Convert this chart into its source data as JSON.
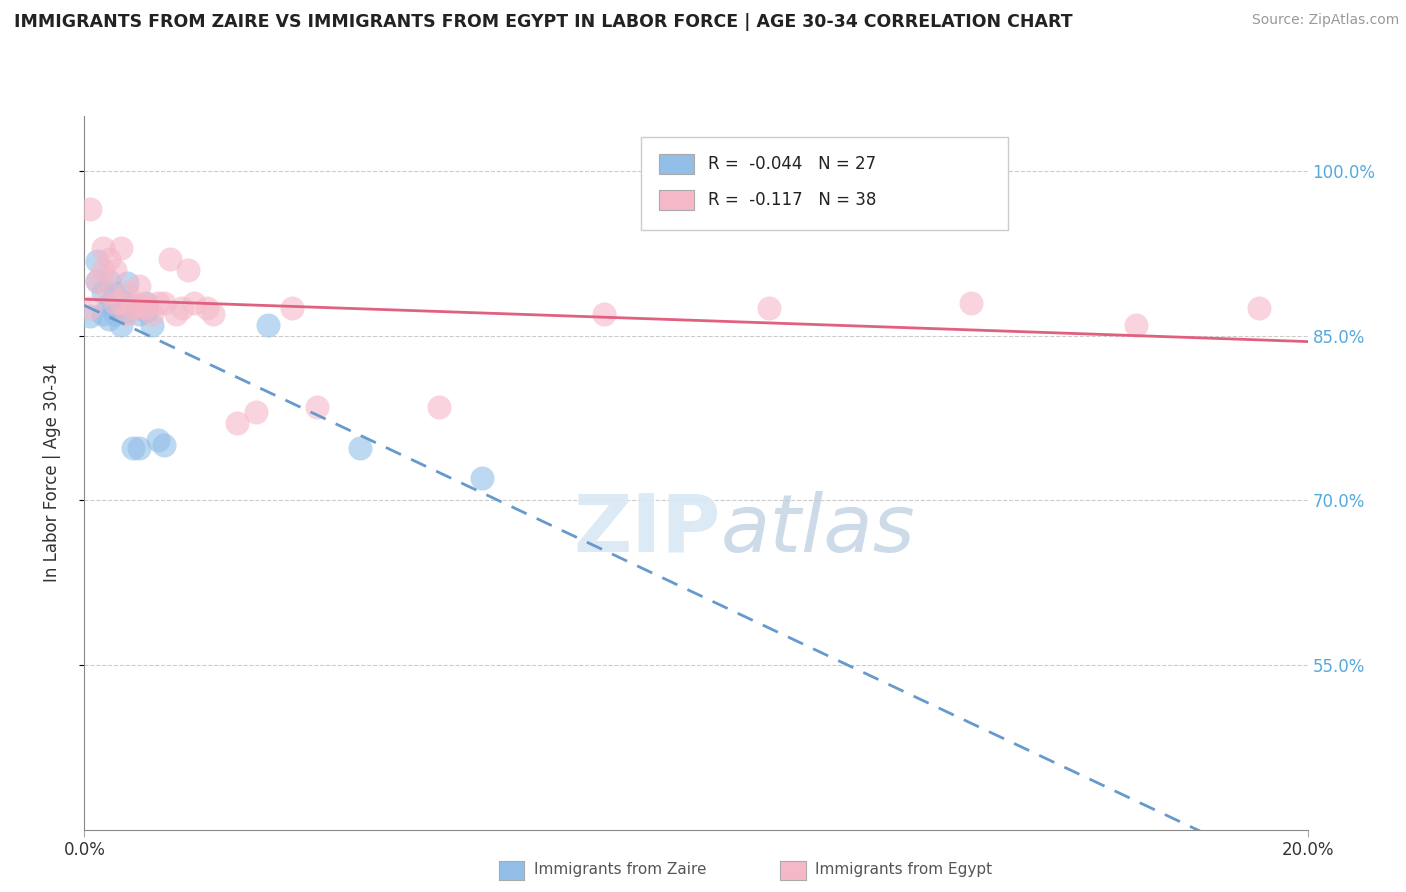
{
  "title": "IMMIGRANTS FROM ZAIRE VS IMMIGRANTS FROM EGYPT IN LABOR FORCE | AGE 30-34 CORRELATION CHART",
  "source": "Source: ZipAtlas.com",
  "ylabel": "In Labor Force | Age 30-34",
  "xlim": [
    0.0,
    0.2
  ],
  "ylim": [
    0.4,
    1.05
  ],
  "yticks": [
    0.55,
    0.7,
    0.85,
    1.0
  ],
  "ytick_labels": [
    "55.0%",
    "70.0%",
    "85.0%",
    "100.0%"
  ],
  "xticks": [
    0.0,
    0.2
  ],
  "xtick_labels": [
    "0.0%",
    "20.0%"
  ],
  "legend_r_zaire": "-0.044",
  "legend_n_zaire": "27",
  "legend_r_egypt": "-0.117",
  "legend_n_egypt": "38",
  "zaire_color": "#92bee8",
  "egypt_color": "#f5b8c8",
  "zaire_line_color": "#6699cc",
  "egypt_line_color": "#e06080",
  "background_color": "#ffffff",
  "watermark_zip": "ZIP",
  "watermark_atlas": "atlas",
  "zaire_points_x": [
    0.001,
    0.002,
    0.002,
    0.003,
    0.003,
    0.004,
    0.004,
    0.004,
    0.005,
    0.005,
    0.005,
    0.006,
    0.006,
    0.007,
    0.007,
    0.007,
    0.008,
    0.009,
    0.009,
    0.01,
    0.01,
    0.011,
    0.012,
    0.013,
    0.03,
    0.045,
    0.065
  ],
  "zaire_points_y": [
    0.868,
    0.9,
    0.918,
    0.87,
    0.89,
    0.865,
    0.878,
    0.9,
    0.87,
    0.875,
    0.888,
    0.86,
    0.88,
    0.872,
    0.88,
    0.898,
    0.748,
    0.748,
    0.87,
    0.872,
    0.88,
    0.86,
    0.755,
    0.75,
    0.86,
    0.748,
    0.72
  ],
  "egypt_points_x": [
    0.001,
    0.001,
    0.002,
    0.003,
    0.003,
    0.004,
    0.004,
    0.005,
    0.005,
    0.006,
    0.006,
    0.007,
    0.007,
    0.008,
    0.009,
    0.009,
    0.01,
    0.01,
    0.011,
    0.012,
    0.013,
    0.014,
    0.015,
    0.016,
    0.017,
    0.018,
    0.02,
    0.021,
    0.025,
    0.028,
    0.034,
    0.038,
    0.058,
    0.085,
    0.112,
    0.145,
    0.172,
    0.192
  ],
  "egypt_points_y": [
    0.875,
    0.965,
    0.9,
    0.91,
    0.93,
    0.89,
    0.92,
    0.88,
    0.91,
    0.88,
    0.93,
    0.87,
    0.89,
    0.875,
    0.878,
    0.895,
    0.875,
    0.878,
    0.87,
    0.88,
    0.88,
    0.92,
    0.87,
    0.875,
    0.91,
    0.88,
    0.875,
    0.87,
    0.77,
    0.78,
    0.875,
    0.785,
    0.785,
    0.87,
    0.875,
    0.88,
    0.86,
    0.875
  ]
}
